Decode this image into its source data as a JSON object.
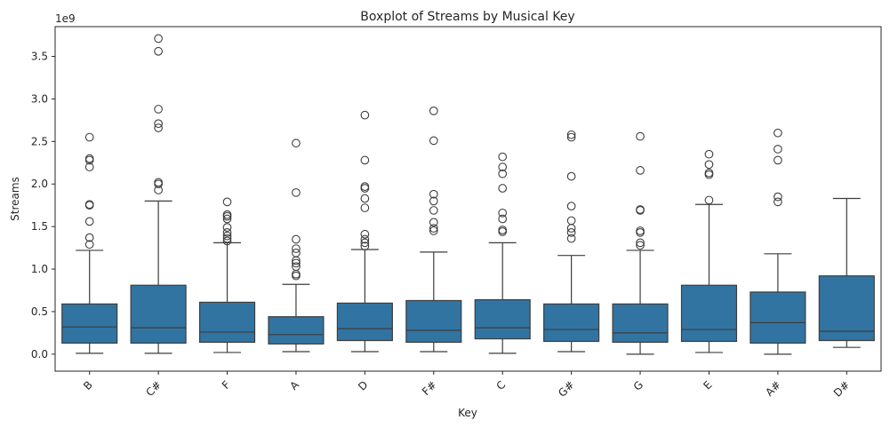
{
  "chart_data": {
    "type": "boxplot",
    "title": "Boxplot of Streams by Musical Key",
    "xlabel": "Key",
    "ylabel": "Streams",
    "y_scale_label": "1e9",
    "ylim": [
      -0.2,
      3.85
    ],
    "yticks": [
      0.0,
      0.5,
      1.0,
      1.5,
      2.0,
      2.5,
      3.0,
      3.5
    ],
    "ytick_labels": [
      "0.0",
      "0.5",
      "1.0",
      "1.5",
      "2.0",
      "2.5",
      "3.0",
      "3.5"
    ],
    "box_color": "#3274a1",
    "edge_color": "#3d3d3d",
    "grid": false,
    "categories": [
      "B",
      "C#",
      "F",
      "A",
      "D",
      "F#",
      "C",
      "G#",
      "G",
      "E",
      "A#",
      "D#"
    ],
    "boxes": [
      {
        "key": "B",
        "whisker_low": 0.01,
        "q1": 0.13,
        "median": 0.32,
        "q3": 0.59,
        "whisker_high": 1.22,
        "outliers": [
          1.29,
          1.37,
          1.56,
          1.75,
          1.76,
          2.2,
          2.28,
          2.3,
          2.55
        ]
      },
      {
        "key": "C#",
        "whisker_low": 0.01,
        "q1": 0.13,
        "median": 0.31,
        "q3": 0.81,
        "whisker_high": 1.8,
        "outliers": [
          1.93,
          2.0,
          2.02,
          2.66,
          2.71,
          2.88,
          3.56,
          3.71
        ]
      },
      {
        "key": "F",
        "whisker_low": 0.02,
        "q1": 0.14,
        "median": 0.26,
        "q3": 0.61,
        "whisker_high": 1.31,
        "outliers": [
          1.33,
          1.36,
          1.39,
          1.43,
          1.49,
          1.59,
          1.62,
          1.64,
          1.79
        ]
      },
      {
        "key": "A",
        "whisker_low": 0.03,
        "q1": 0.12,
        "median": 0.23,
        "q3": 0.44,
        "whisker_high": 0.82,
        "outliers": [
          0.92,
          0.94,
          1.03,
          1.07,
          1.1,
          1.19,
          1.24,
          1.35,
          1.9,
          2.48
        ]
      },
      {
        "key": "D",
        "whisker_low": 0.03,
        "q1": 0.16,
        "median": 0.3,
        "q3": 0.6,
        "whisker_high": 1.23,
        "outliers": [
          1.27,
          1.31,
          1.35,
          1.41,
          1.72,
          1.83,
          1.95,
          1.97,
          2.28,
          2.81
        ]
      },
      {
        "key": "F#",
        "whisker_low": 0.03,
        "q1": 0.14,
        "median": 0.28,
        "q3": 0.63,
        "whisker_high": 1.2,
        "outliers": [
          1.45,
          1.48,
          1.55,
          1.69,
          1.8,
          1.88,
          2.51,
          2.86
        ]
      },
      {
        "key": "C",
        "whisker_low": 0.01,
        "q1": 0.18,
        "median": 0.31,
        "q3": 0.64,
        "whisker_high": 1.31,
        "outliers": [
          1.44,
          1.46,
          1.59,
          1.66,
          1.95,
          2.12,
          2.2,
          2.32
        ]
      },
      {
        "key": "G#",
        "whisker_low": 0.03,
        "q1": 0.15,
        "median": 0.29,
        "q3": 0.59,
        "whisker_high": 1.16,
        "outliers": [
          1.36,
          1.43,
          1.48,
          1.57,
          1.74,
          2.09,
          2.55,
          2.58
        ]
      },
      {
        "key": "G",
        "whisker_low": 0.0,
        "q1": 0.14,
        "median": 0.25,
        "q3": 0.59,
        "whisker_high": 1.22,
        "outliers": [
          1.28,
          1.31,
          1.43,
          1.45,
          1.69,
          1.7,
          2.16,
          2.56
        ]
      },
      {
        "key": "E",
        "whisker_low": 0.02,
        "q1": 0.15,
        "median": 0.29,
        "q3": 0.81,
        "whisker_high": 1.76,
        "outliers": [
          1.81,
          2.11,
          2.13,
          2.23,
          2.35
        ]
      },
      {
        "key": "A#",
        "whisker_low": 0.0,
        "q1": 0.13,
        "median": 0.37,
        "q3": 0.73,
        "whisker_high": 1.18,
        "outliers": [
          1.79,
          1.85,
          2.28,
          2.41,
          2.6
        ]
      },
      {
        "key": "D#",
        "whisker_low": 0.08,
        "q1": 0.16,
        "median": 0.27,
        "q3": 0.92,
        "whisker_high": 1.83,
        "outliers": []
      }
    ]
  }
}
